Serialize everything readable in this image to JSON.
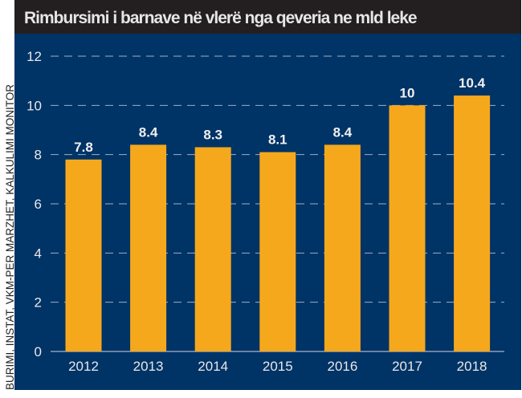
{
  "chart_data": {
    "type": "bar",
    "title": "Rimbursimi i barnave në vlerë nga qeveria ne mld leke",
    "source": "BURIMI, INSTAT, VKM-PER MARZHET, KALKULIMI MONITOR",
    "categories": [
      "2012",
      "2013",
      "2014",
      "2015",
      "2016",
      "2017",
      "2018"
    ],
    "values": [
      7.8,
      8.4,
      8.3,
      8.1,
      8.4,
      10,
      10.4
    ],
    "value_labels": [
      "7.8",
      "8.4",
      "8.3",
      "8.1",
      "8.4",
      "10",
      "10.4"
    ],
    "yticks": [
      0,
      2,
      4,
      6,
      8,
      10,
      12
    ],
    "ylim": [
      0,
      12
    ],
    "xlabel": "",
    "ylabel": "",
    "grid": true,
    "colors": {
      "bar": "#f6a81d",
      "background": "#003366",
      "title_bar": "#231f20"
    }
  }
}
